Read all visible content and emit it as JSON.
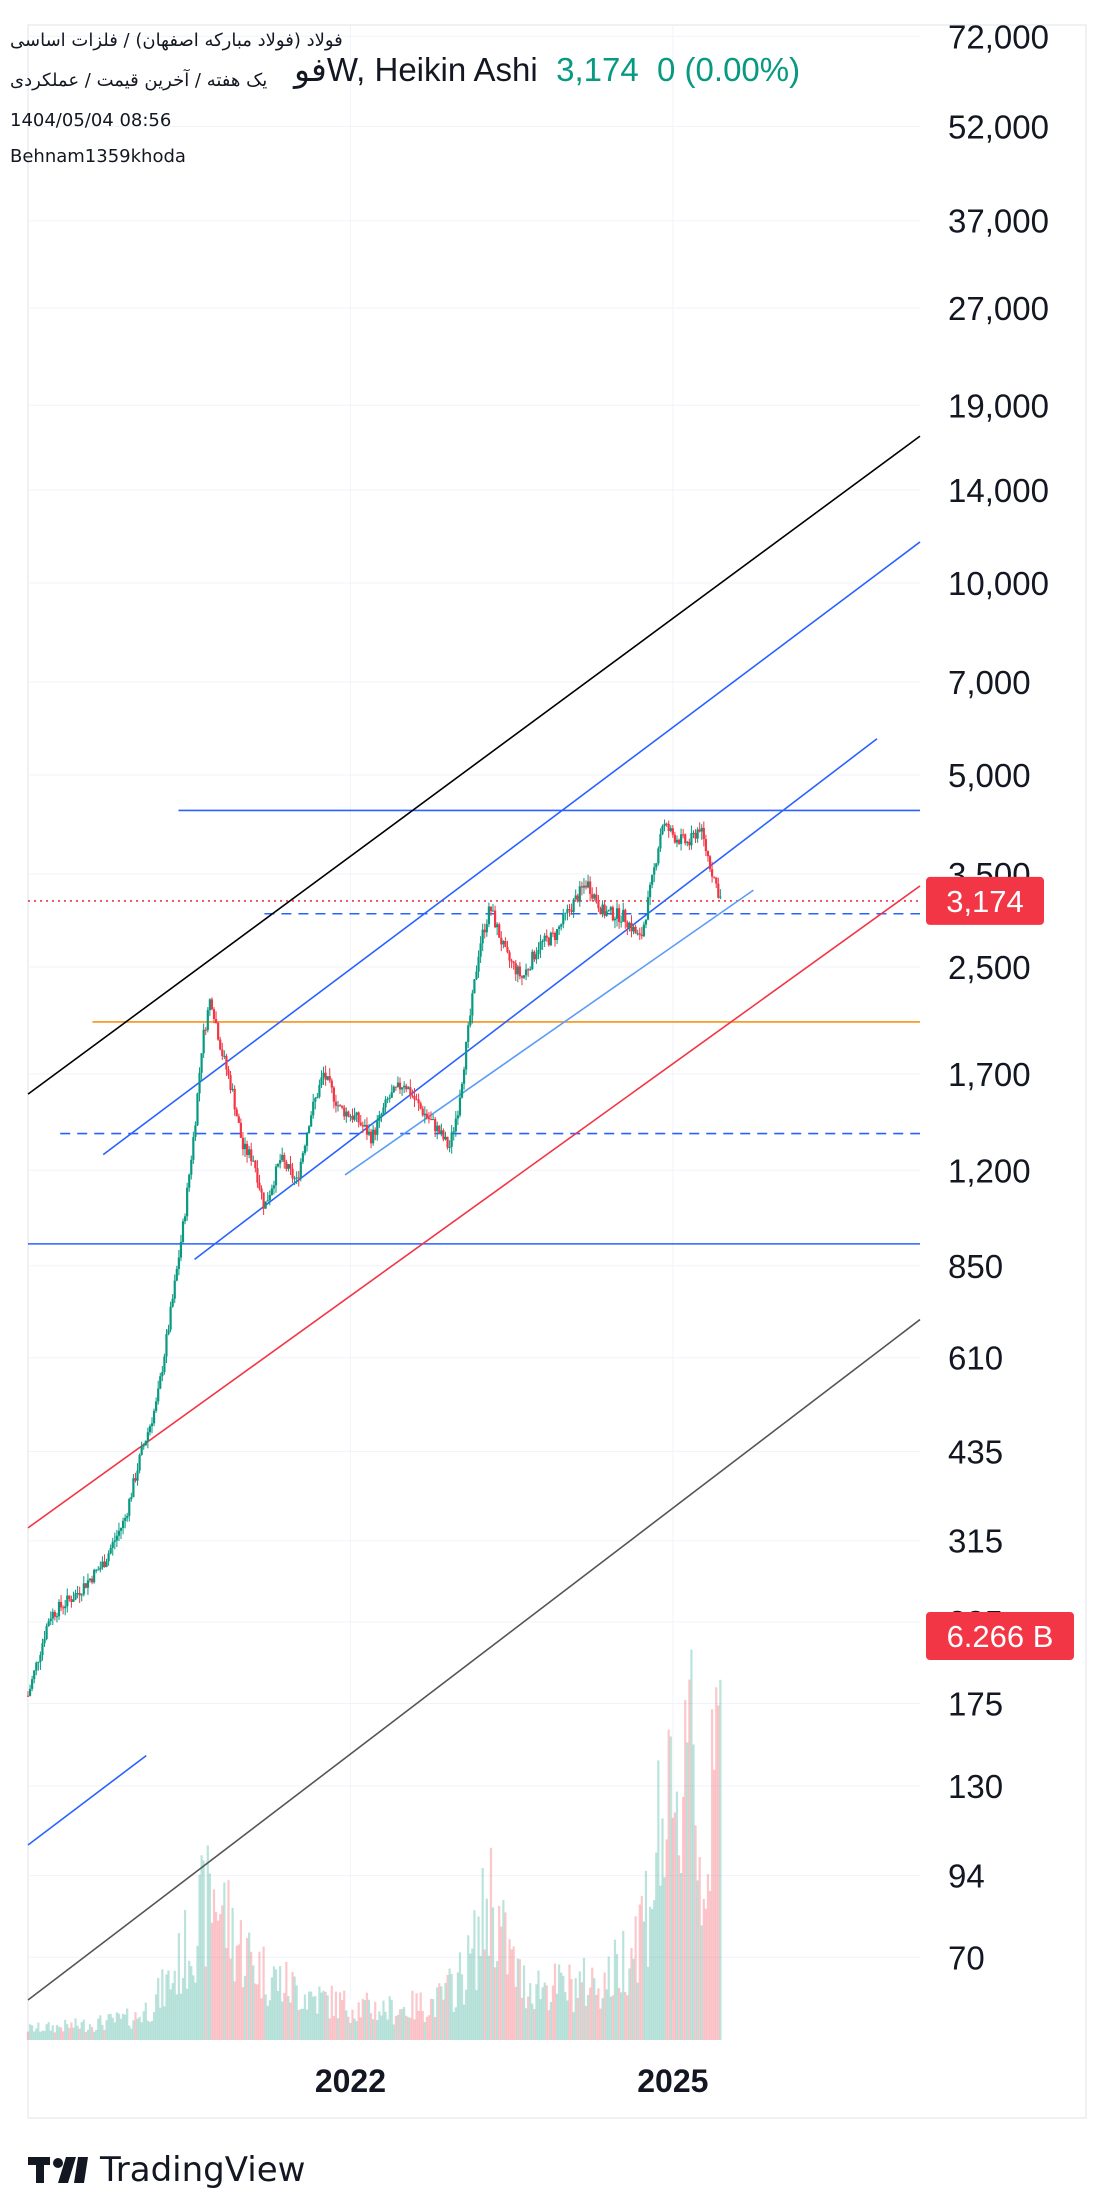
{
  "header": {
    "symbol_line": "فولاد (فولاد مبارکه اصفهان) / فلزات اساسی",
    "interval_line": "یک هفته / آخرین قیمت / عملکردی",
    "timestamp": "1404/05/04 08:56",
    "author": "Behnam1359khoda",
    "chart_title": "فوW, Heikin Ashi",
    "last_price": "3,174",
    "change": "0 (0.00%)"
  },
  "brand": {
    "name": "TradingView",
    "logo_icon": "tradingview-logo-icon"
  },
  "colors": {
    "up": "#089981",
    "down": "#f23645",
    "line_blue": "#2962ff",
    "line_orange": "#f7931a",
    "badge_red": "#f23645"
  },
  "chart_data": {
    "type": "candlestick",
    "style": "Heikin Ashi",
    "interval": "1W",
    "y_scale": "log",
    "y_range": [
      60,
      75000
    ],
    "y_ticks": [
      72000,
      52000,
      37000,
      27000,
      19000,
      14000,
      10000,
      7000,
      5000,
      3500,
      2500,
      1700,
      1200,
      850,
      610,
      435,
      315,
      235,
      175,
      130,
      94,
      70
    ],
    "y_tick_labels": [
      "72,000",
      "52,000",
      "37,000",
      "27,000",
      "19,000",
      "14,000",
      "10,000",
      "7,000",
      "5,000",
      "3,500",
      "2,500",
      "1,700",
      "1,200",
      "850",
      "610",
      "435",
      "315",
      "235",
      "175",
      "130",
      "94",
      "70"
    ],
    "x_range": [
      2019.0,
      2027.3
    ],
    "x_ticks": [
      2022,
      2025
    ],
    "x_tick_labels": [
      "2022",
      "2025"
    ],
    "price_path": [
      [
        2019.0,
        180
      ],
      [
        2019.2,
        240
      ],
      [
        2019.45,
        260
      ],
      [
        2019.7,
        290
      ],
      [
        2019.9,
        340
      ],
      [
        2020.05,
        430
      ],
      [
        2020.2,
        520
      ],
      [
        2020.35,
        760
      ],
      [
        2020.45,
        1000
      ],
      [
        2020.55,
        1400
      ],
      [
        2020.62,
        1900
      ],
      [
        2020.7,
        2250
      ],
      [
        2020.8,
        1850
      ],
      [
        2020.9,
        1600
      ],
      [
        2021.0,
        1300
      ],
      [
        2021.1,
        1250
      ],
      [
        2021.2,
        1050
      ],
      [
        2021.35,
        1250
      ],
      [
        2021.5,
        1150
      ],
      [
        2021.62,
        1450
      ],
      [
        2021.75,
        1700
      ],
      [
        2021.9,
        1500
      ],
      [
        2022.05,
        1450
      ],
      [
        2022.2,
        1350
      ],
      [
        2022.35,
        1550
      ],
      [
        2022.5,
        1650
      ],
      [
        2022.65,
        1500
      ],
      [
        2022.8,
        1400
      ],
      [
        2022.92,
        1300
      ],
      [
        2023.0,
        1500
      ],
      [
        2023.1,
        2000
      ],
      [
        2023.2,
        2700
      ],
      [
        2023.3,
        3100
      ],
      [
        2023.45,
        2600
      ],
      [
        2023.6,
        2400
      ],
      [
        2023.75,
        2700
      ],
      [
        2023.9,
        2800
      ],
      [
        2024.05,
        3100
      ],
      [
        2024.2,
        3400
      ],
      [
        2024.35,
        3050
      ],
      [
        2024.55,
        3000
      ],
      [
        2024.7,
        2750
      ],
      [
        2024.82,
        3500
      ],
      [
        2024.9,
        4200
      ],
      [
        2025.02,
        4000
      ],
      [
        2025.15,
        3900
      ],
      [
        2025.25,
        4150
      ],
      [
        2025.35,
        3600
      ],
      [
        2025.45,
        3174
      ]
    ],
    "volume_path": [
      [
        2019.0,
        0.3
      ],
      [
        2019.5,
        0.4
      ],
      [
        2020.0,
        0.6
      ],
      [
        2020.3,
        1.5
      ],
      [
        2020.55,
        3.0
      ],
      [
        2020.75,
        4.0
      ],
      [
        2020.95,
        2.6
      ],
      [
        2021.2,
        1.8
      ],
      [
        2021.6,
        1.2
      ],
      [
        2022.0,
        0.9
      ],
      [
        2022.4,
        0.8
      ],
      [
        2022.8,
        1.0
      ],
      [
        2023.1,
        2.0
      ],
      [
        2023.3,
        4.0
      ],
      [
        2023.6,
        1.5
      ],
      [
        2024.0,
        1.4
      ],
      [
        2024.4,
        1.6
      ],
      [
        2024.75,
        3.5
      ],
      [
        2024.9,
        6.0
      ],
      [
        2025.05,
        5.0
      ],
      [
        2025.15,
        12.0
      ],
      [
        2025.25,
        4.5
      ],
      [
        2025.35,
        5.5
      ],
      [
        2025.45,
        9.0
      ]
    ],
    "last_value_label": "3,174",
    "volume_label": "6.266 B",
    "horizontal_lines": [
      {
        "price": 4400,
        "color": "#2962ff",
        "style": "solid",
        "x_start": 2020.4
      },
      {
        "price": 3174,
        "color": "#f23645",
        "style": "dotted",
        "x_start": 2019.0
      },
      {
        "price": 3030,
        "color": "#2962ff",
        "style": "dashed",
        "x_start": 2021.2
      },
      {
        "price": 2050,
        "color": "#f7931a",
        "style": "solid",
        "x_start": 2019.6
      },
      {
        "price": 1370,
        "color": "#2962ff",
        "style": "dashed",
        "x_start": 2019.3
      },
      {
        "price": 920,
        "color": "#2962ff",
        "style": "solid",
        "x_start": 2019.0
      }
    ],
    "trend_lines": [
      {
        "from": [
          2019.0,
          1580
        ],
        "to": [
          2027.3,
          17000
        ],
        "color": "#000000"
      },
      {
        "from": [
          2019.7,
          1270
        ],
        "to": [
          2027.3,
          11600
        ],
        "color": "#2962ff"
      },
      {
        "from": [
          2020.55,
          870
        ],
        "to": [
          2026.9,
          5700
        ],
        "color": "#2962ff"
      },
      {
        "from": [
          2021.95,
          1180
        ],
        "to": [
          2025.75,
          3300
        ],
        "color": "#5b9cf6"
      },
      {
        "from": [
          2019.0,
          330
        ],
        "to": [
          2027.3,
          3350
        ],
        "color": "#f23645"
      },
      {
        "from": [
          2019.0,
          60
        ],
        "to": [
          2027.3,
          700
        ],
        "color": "#555555"
      },
      {
        "from": [
          2019.0,
          105
        ],
        "to": [
          2020.1,
          145
        ],
        "color": "#2962ff"
      }
    ]
  }
}
